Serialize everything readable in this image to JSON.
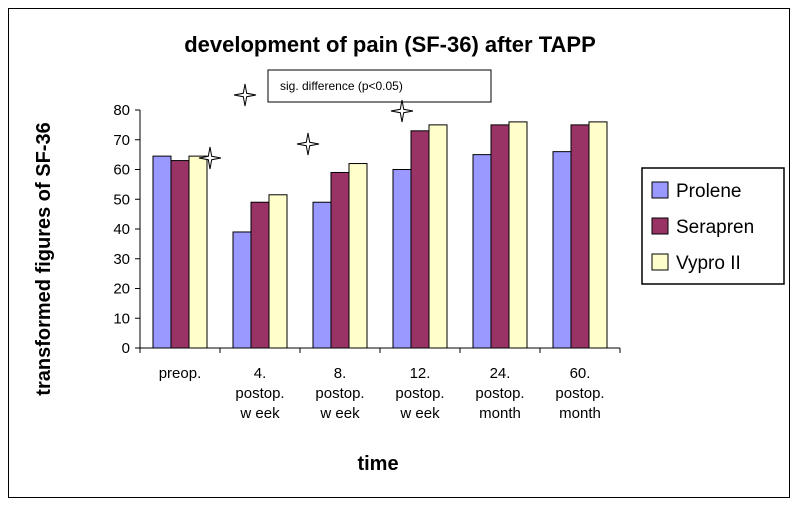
{
  "chart_data": {
    "type": "bar",
    "title": "development of pain (SF-36) after TAPP",
    "xlabel": "time",
    "ylabel": "transformed figures of SF-36",
    "ylim": [
      0,
      80
    ],
    "yticks": [
      0,
      10,
      20,
      30,
      40,
      50,
      60,
      70,
      80
    ],
    "categories": [
      [
        "preop."
      ],
      [
        "4.",
        "postop.",
        "w eek"
      ],
      [
        "8.",
        "postop.",
        "w eek"
      ],
      [
        "12.",
        "postop.",
        "w eek"
      ],
      [
        "24.",
        "postop.",
        "month"
      ],
      [
        "60.",
        "postop.",
        "month"
      ]
    ],
    "series": [
      {
        "name": "Prolene",
        "color": "#9999ff",
        "values": [
          64.5,
          39,
          49,
          60,
          65,
          66
        ]
      },
      {
        "name": "Serapren",
        "color": "#993366",
        "values": [
          63,
          49,
          59,
          73,
          75,
          75
        ]
      },
      {
        "name": "Vypro II",
        "color": "#ffffcc",
        "values": [
          64.5,
          51.5,
          62,
          75,
          76,
          76
        ]
      }
    ],
    "legend_position": "right",
    "grid": false,
    "annotation": {
      "text": "sig. difference (p<0.05)",
      "marker": "four-point-star",
      "marked_categories": [
        1,
        2,
        3
      ]
    }
  }
}
